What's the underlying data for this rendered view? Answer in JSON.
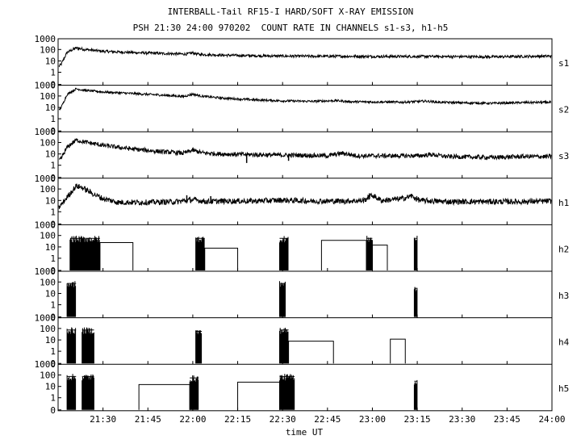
{
  "header": {
    "title": "INTERBALL-Tail RF15-I HARD/SOFT X-RAY EMISSION",
    "subtitle": "PSH 21:30 24:00 970202  COUNT RATE IN CHANNELS s1-s3, h1-h5"
  },
  "chart_data": {
    "type": "line",
    "title": "INTERBALL-Tail RF15-I HARD/SOFT X-RAY EMISSION",
    "subtitle": "PSH 21:30 24:00 970202  COUNT RATE IN CHANNELS s1-s3, h1-h5",
    "xlabel": "time UT",
    "x_range_minutes": [
      1275,
      1440
    ],
    "x_ticks": [
      {
        "t": 1290,
        "label": "21:30"
      },
      {
        "t": 1305,
        "label": "21:45"
      },
      {
        "t": 1320,
        "label": "22:00"
      },
      {
        "t": 1335,
        "label": "22:15"
      },
      {
        "t": 1350,
        "label": "22:30"
      },
      {
        "t": 1365,
        "label": "22:45"
      },
      {
        "t": 1380,
        "label": "23:00"
      },
      {
        "t": 1395,
        "label": "23:15"
      },
      {
        "t": 1410,
        "label": "23:30"
      },
      {
        "t": 1425,
        "label": "23:45"
      },
      {
        "t": 1440,
        "label": "24:00"
      }
    ],
    "y_scale": "log",
    "y_ticks": [
      {
        "v": 1000,
        "label": "1000"
      },
      {
        "v": 100,
        "label": "100"
      },
      {
        "v": 10,
        "label": "10"
      },
      {
        "v": 1,
        "label": "1"
      },
      {
        "v": 0,
        "label": "0"
      }
    ],
    "panels": [
      {
        "name": "s1",
        "kind": "continuous",
        "points": [
          [
            1275,
            3
          ],
          [
            1276,
            5
          ],
          [
            1278,
            60
          ],
          [
            1281,
            150
          ],
          [
            1284,
            110
          ],
          [
            1290,
            75
          ],
          [
            1300,
            58
          ],
          [
            1310,
            48
          ],
          [
            1318,
            42
          ],
          [
            1320,
            55
          ],
          [
            1322,
            40
          ],
          [
            1330,
            34
          ],
          [
            1340,
            30
          ],
          [
            1350,
            28
          ],
          [
            1360,
            27
          ],
          [
            1370,
            27
          ],
          [
            1380,
            26
          ],
          [
            1390,
            26
          ],
          [
            1400,
            26
          ],
          [
            1410,
            25
          ],
          [
            1420,
            24
          ],
          [
            1430,
            26
          ],
          [
            1440,
            28
          ]
        ],
        "noise": 0.12,
        "spikes": []
      },
      {
        "name": "s2",
        "kind": "continuous",
        "points": [
          [
            1275,
            5
          ],
          [
            1276,
            10
          ],
          [
            1278,
            150
          ],
          [
            1281,
            480
          ],
          [
            1284,
            350
          ],
          [
            1290,
            250
          ],
          [
            1300,
            180
          ],
          [
            1310,
            130
          ],
          [
            1317,
            100
          ],
          [
            1320,
            160
          ],
          [
            1323,
            105
          ],
          [
            1330,
            70
          ],
          [
            1340,
            50
          ],
          [
            1350,
            40
          ],
          [
            1360,
            36
          ],
          [
            1368,
            42
          ],
          [
            1372,
            34
          ],
          [
            1380,
            32
          ],
          [
            1390,
            30
          ],
          [
            1398,
            38
          ],
          [
            1402,
            30
          ],
          [
            1410,
            27
          ],
          [
            1420,
            24
          ],
          [
            1430,
            28
          ],
          [
            1440,
            30
          ]
        ],
        "noise": 0.1,
        "spikes": []
      },
      {
        "name": "s3",
        "kind": "continuous",
        "points": [
          [
            1275,
            2
          ],
          [
            1276,
            4
          ],
          [
            1278,
            40
          ],
          [
            1281,
            180
          ],
          [
            1284,
            120
          ],
          [
            1290,
            60
          ],
          [
            1300,
            28
          ],
          [
            1310,
            16
          ],
          [
            1317,
            12
          ],
          [
            1320,
            22
          ],
          [
            1323,
            13
          ],
          [
            1330,
            10
          ],
          [
            1340,
            9
          ],
          [
            1350,
            8
          ],
          [
            1355,
            8
          ],
          [
            1365,
            7
          ],
          [
            1370,
            12
          ],
          [
            1375,
            7
          ],
          [
            1385,
            7
          ],
          [
            1395,
            7
          ],
          [
            1400,
            9
          ],
          [
            1405,
            6
          ],
          [
            1420,
            5
          ],
          [
            1430,
            6
          ],
          [
            1440,
            6
          ]
        ],
        "noise": 0.2,
        "spikes": [
          [
            1338,
            1.6
          ],
          [
            1352,
            2.5
          ]
        ]
      },
      {
        "name": "h1",
        "kind": "continuous",
        "points": [
          [
            1275,
            2
          ],
          [
            1276,
            4
          ],
          [
            1278,
            20
          ],
          [
            1281,
            200
          ],
          [
            1283,
            150
          ],
          [
            1286,
            50
          ],
          [
            1290,
            15
          ],
          [
            1295,
            7
          ],
          [
            1305,
            7
          ],
          [
            1315,
            8
          ],
          [
            1320,
            12
          ],
          [
            1325,
            8
          ],
          [
            1330,
            9
          ],
          [
            1340,
            9
          ],
          [
            1350,
            11
          ],
          [
            1360,
            9
          ],
          [
            1370,
            9
          ],
          [
            1377,
            10
          ],
          [
            1380,
            30
          ],
          [
            1383,
            10
          ],
          [
            1390,
            15
          ],
          [
            1393,
            25
          ],
          [
            1396,
            10
          ],
          [
            1405,
            8
          ],
          [
            1420,
            8
          ],
          [
            1430,
            8
          ],
          [
            1440,
            9
          ]
        ],
        "noise": 0.25,
        "spikes": [
          [
            1379,
            45
          ],
          [
            1393,
            40
          ],
          [
            1318,
            30
          ],
          [
            1326,
            25
          ]
        ]
      },
      {
        "name": "h2",
        "kind": "bursts",
        "bursts": [
          [
            1279,
            1289,
            60
          ],
          [
            1321,
            1324,
            60
          ],
          [
            1349,
            1352,
            60
          ],
          [
            1378,
            1380,
            60
          ],
          [
            1394,
            1395,
            60
          ]
        ],
        "blocks": [
          [
            1289,
            1300,
            25
          ],
          [
            1324,
            1335,
            8
          ],
          [
            1363,
            1380,
            40
          ],
          [
            1380,
            1385,
            15
          ]
        ]
      },
      {
        "name": "h3",
        "kind": "bursts",
        "bursts": [
          [
            1278,
            1281,
            80
          ],
          [
            1349,
            1351,
            80
          ],
          [
            1394,
            1395,
            30
          ]
        ],
        "blocks": []
      },
      {
        "name": "h4",
        "kind": "bursts",
        "bursts": [
          [
            1278,
            1281,
            80
          ],
          [
            1283,
            1287,
            80
          ],
          [
            1321,
            1323,
            60
          ],
          [
            1349,
            1352,
            80
          ]
        ],
        "blocks": [
          [
            1352,
            1367,
            8
          ],
          [
            1386,
            1391,
            12
          ]
        ]
      },
      {
        "name": "h5",
        "kind": "bursts",
        "bursts": [
          [
            1278,
            1281,
            80
          ],
          [
            1283,
            1287,
            80
          ],
          [
            1319,
            1322,
            60
          ],
          [
            1349,
            1354,
            80
          ],
          [
            1394,
            1395,
            30
          ]
        ],
        "blocks": [
          [
            1302,
            1319,
            15
          ],
          [
            1335,
            1349,
            25
          ]
        ]
      }
    ]
  }
}
